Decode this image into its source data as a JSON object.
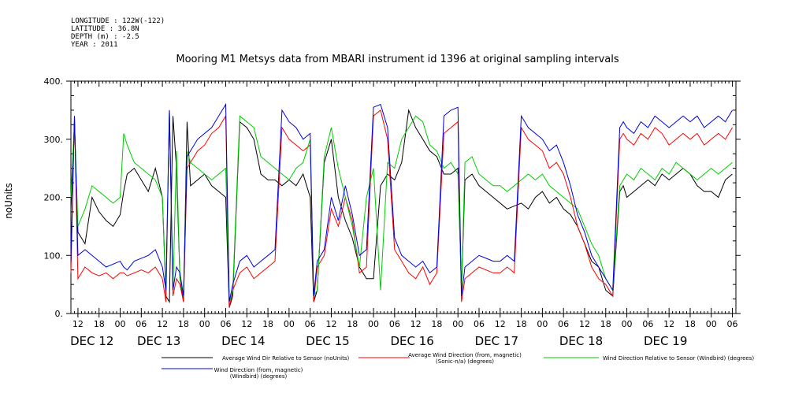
{
  "header": {
    "meta_lines": [
      "LONGITUDE : 122W(-122)",
      "LATITUDE : 36.8N",
      "DEPTH (m) : -2.5",
      "YEAR : 2011"
    ],
    "title": "Mooring M1 Metsys data from MBARI instrument id 1396 at original sampling intervals"
  },
  "chart_data": {
    "type": "line",
    "title": "Mooring M1 Metsys data from MBARI instrument id 1396 at original sampling intervals",
    "ylabel": "noUnits",
    "xlabel": "",
    "ylim": [
      0,
      400
    ],
    "yticks": [
      0,
      100,
      200,
      300,
      400
    ],
    "ytick_labels": [
      "0.",
      "100.",
      "200.",
      "300.",
      "400."
    ],
    "x_unit": "hours since 2011-12-12 00:00",
    "xlim": [
      -14,
      175
    ],
    "hour_ticks": [
      {
        "h": -12,
        "label": "12"
      },
      {
        "h": -6,
        "label": "18"
      },
      {
        "h": 0,
        "label": "00"
      },
      {
        "h": 6,
        "label": "06"
      },
      {
        "h": 12,
        "label": "12"
      },
      {
        "h": 18,
        "label": "18"
      },
      {
        "h": 24,
        "label": "00"
      },
      {
        "h": 30,
        "label": "06"
      },
      {
        "h": 36,
        "label": "12"
      },
      {
        "h": 42,
        "label": "18"
      },
      {
        "h": 48,
        "label": "00"
      },
      {
        "h": 54,
        "label": "06"
      },
      {
        "h": 60,
        "label": "12"
      },
      {
        "h": 66,
        "label": "18"
      },
      {
        "h": 72,
        "label": "00"
      },
      {
        "h": 78,
        "label": "06"
      },
      {
        "h": 84,
        "label": "12"
      },
      {
        "h": 90,
        "label": "18"
      },
      {
        "h": 96,
        "label": "00"
      },
      {
        "h": 102,
        "label": "06"
      },
      {
        "h": 108,
        "label": "12"
      },
      {
        "h": 114,
        "label": "18"
      },
      {
        "h": 120,
        "label": "00"
      },
      {
        "h": 126,
        "label": "06"
      },
      {
        "h": 132,
        "label": "12"
      },
      {
        "h": 138,
        "label": "18"
      },
      {
        "h": 144,
        "label": "00"
      },
      {
        "h": 150,
        "label": "06"
      },
      {
        "h": 156,
        "label": "12"
      },
      {
        "h": 162,
        "label": "18"
      },
      {
        "h": 168,
        "label": "00"
      },
      {
        "h": 174,
        "label": "06"
      }
    ],
    "day_labels": [
      {
        "h": -8,
        "label": "DEC 12"
      },
      {
        "h": 11,
        "label": "DEC 13"
      },
      {
        "h": 35,
        "label": "DEC 14"
      },
      {
        "h": 59,
        "label": "DEC 15"
      },
      {
        "h": 83,
        "label": "DEC 16"
      },
      {
        "h": 107,
        "label": "DEC 17"
      },
      {
        "h": 131,
        "label": "DEC 18"
      },
      {
        "h": 155,
        "label": "DEC 19"
      }
    ],
    "series": [
      {
        "name": "Average Wind Dir Relative to Sensor (noUnits)",
        "color": "#000000",
        "x": [
          -14,
          -13,
          -12,
          -10,
          -8,
          -6,
          -4,
          -2,
          0,
          1,
          2,
          4,
          6,
          8,
          10,
          12,
          13,
          14,
          15,
          16,
          17,
          18,
          19,
          20,
          22,
          24,
          26,
          28,
          30,
          31,
          32,
          34,
          36,
          38,
          40,
          42,
          44,
          46,
          48,
          50,
          52,
          54,
          55,
          56,
          58,
          60,
          62,
          64,
          66,
          68,
          70,
          72,
          74,
          76,
          78,
          80,
          82,
          84,
          86,
          88,
          90,
          92,
          94,
          96,
          97,
          98,
          100,
          102,
          104,
          106,
          108,
          110,
          112,
          114,
          116,
          118,
          120,
          122,
          124,
          126,
          128,
          130,
          132,
          134,
          136,
          138,
          140,
          142,
          143,
          144,
          146,
          148,
          150,
          152,
          154,
          156,
          158,
          160,
          162,
          164,
          166,
          168,
          170,
          172,
          174
        ],
        "y": [
          180,
          330,
          140,
          120,
          200,
          175,
          160,
          150,
          170,
          210,
          240,
          250,
          230,
          210,
          250,
          200,
          30,
          20,
          340,
          250,
          60,
          20,
          330,
          220,
          230,
          240,
          220,
          210,
          200,
          10,
          30,
          330,
          320,
          300,
          240,
          230,
          230,
          220,
          230,
          220,
          240,
          200,
          20,
          40,
          260,
          300,
          200,
          160,
          130,
          80,
          60,
          60,
          220,
          240,
          230,
          260,
          350,
          320,
          300,
          280,
          270,
          240,
          240,
          250,
          40,
          230,
          240,
          220,
          210,
          200,
          190,
          180,
          185,
          190,
          180,
          200,
          210,
          190,
          200,
          180,
          170,
          150,
          120,
          90,
          80,
          40,
          30,
          210,
          220,
          200,
          210,
          220,
          230,
          220,
          240,
          230,
          240,
          250,
          240,
          220,
          210,
          210,
          200,
          230,
          240
        ]
      },
      {
        "name": "Average Wind Direction (from, magnetic) (Sonic-n/a) (degrees)",
        "color": "#ff0000",
        "x": [
          -14,
          -13,
          -12,
          -10,
          -8,
          -6,
          -4,
          -2,
          0,
          1,
          2,
          4,
          6,
          8,
          10,
          12,
          13,
          14,
          15,
          16,
          17,
          18,
          19,
          20,
          22,
          24,
          26,
          28,
          30,
          31,
          32,
          34,
          36,
          38,
          40,
          42,
          44,
          46,
          48,
          50,
          52,
          54,
          55,
          56,
          58,
          60,
          62,
          64,
          66,
          68,
          70,
          72,
          74,
          76,
          78,
          80,
          82,
          84,
          86,
          88,
          90,
          92,
          94,
          96,
          97,
          98,
          100,
          102,
          104,
          106,
          108,
          110,
          112,
          114,
          116,
          118,
          120,
          122,
          124,
          126,
          128,
          130,
          132,
          134,
          136,
          138,
          140,
          142,
          143,
          144,
          146,
          148,
          150,
          152,
          154,
          156,
          158,
          160,
          162,
          164,
          166,
          168,
          170,
          172,
          174
        ],
        "y": [
          70,
          340,
          60,
          80,
          70,
          65,
          70,
          60,
          70,
          70,
          65,
          70,
          75,
          70,
          80,
          60,
          20,
          350,
          30,
          60,
          50,
          20,
          250,
          260,
          280,
          290,
          310,
          320,
          340,
          10,
          40,
          70,
          80,
          60,
          70,
          80,
          90,
          320,
          300,
          290,
          280,
          290,
          20,
          80,
          100,
          180,
          150,
          200,
          160,
          70,
          80,
          340,
          350,
          300,
          110,
          90,
          70,
          60,
          80,
          50,
          70,
          310,
          320,
          330,
          20,
          60,
          70,
          80,
          75,
          70,
          70,
          80,
          70,
          320,
          300,
          290,
          280,
          250,
          260,
          240,
          200,
          150,
          120,
          80,
          60,
          50,
          30,
          300,
          310,
          300,
          290,
          310,
          300,
          320,
          310,
          290,
          300,
          310,
          300,
          310,
          290,
          300,
          310,
          300,
          320
        ]
      },
      {
        "name": "Wind Direction Relative to Sensor (Windbird) (degrees)",
        "color": "#00cc00",
        "x": [
          -14,
          -13,
          -12,
          -10,
          -8,
          -6,
          -4,
          -2,
          0,
          1,
          2,
          4,
          6,
          8,
          10,
          12,
          13,
          14,
          15,
          16,
          17,
          18,
          19,
          20,
          22,
          24,
          26,
          28,
          30,
          31,
          32,
          34,
          36,
          38,
          40,
          42,
          44,
          46,
          48,
          50,
          52,
          54,
          55,
          56,
          58,
          60,
          62,
          64,
          66,
          68,
          70,
          72,
          74,
          76,
          78,
          80,
          82,
          84,
          86,
          88,
          90,
          92,
          94,
          96,
          97,
          98,
          100,
          102,
          104,
          106,
          108,
          110,
          112,
          114,
          116,
          118,
          120,
          122,
          124,
          126,
          128,
          130,
          132,
          134,
          136,
          138,
          140,
          142,
          143,
          144,
          146,
          148,
          150,
          152,
          154,
          156,
          158,
          160,
          162,
          164,
          166,
          168,
          170,
          172,
          174
        ],
        "y": [
          200,
          330,
          150,
          180,
          220,
          210,
          200,
          190,
          200,
          310,
          290,
          260,
          250,
          240,
          230,
          200,
          40,
          350,
          40,
          280,
          60,
          30,
          280,
          260,
          250,
          240,
          230,
          240,
          250,
          20,
          40,
          340,
          330,
          320,
          270,
          260,
          250,
          240,
          230,
          250,
          260,
          300,
          30,
          40,
          270,
          320,
          250,
          200,
          150,
          80,
          200,
          250,
          40,
          260,
          250,
          300,
          320,
          340,
          330,
          290,
          280,
          250,
          260,
          240,
          40,
          260,
          270,
          240,
          230,
          220,
          220,
          210,
          220,
          230,
          240,
          230,
          240,
          220,
          210,
          200,
          190,
          180,
          150,
          120,
          100,
          60,
          40,
          220,
          230,
          240,
          230,
          250,
          240,
          230,
          250,
          240,
          260,
          250,
          240,
          230,
          240,
          250,
          240,
          250,
          260
        ]
      },
      {
        "name": "Wind Direction (from, magnetic) (Windbird) (degrees)",
        "color": "#0000dd",
        "x": [
          -14,
          -13,
          -12,
          -10,
          -8,
          -6,
          -4,
          -2,
          0,
          1,
          2,
          4,
          6,
          8,
          10,
          12,
          13,
          14,
          15,
          16,
          17,
          18,
          19,
          20,
          22,
          24,
          26,
          28,
          30,
          31,
          32,
          34,
          36,
          38,
          40,
          42,
          44,
          46,
          48,
          50,
          52,
          54,
          55,
          56,
          58,
          60,
          62,
          64,
          66,
          68,
          70,
          72,
          74,
          76,
          78,
          80,
          82,
          84,
          86,
          88,
          90,
          92,
          94,
          96,
          97,
          98,
          100,
          102,
          104,
          106,
          108,
          110,
          112,
          114,
          116,
          118,
          120,
          122,
          124,
          126,
          128,
          130,
          132,
          134,
          136,
          138,
          140,
          142,
          143,
          144,
          146,
          148,
          150,
          152,
          154,
          156,
          158,
          160,
          162,
          164,
          166,
          168,
          170,
          172,
          174
        ],
        "y": [
          90,
          340,
          100,
          110,
          100,
          90,
          80,
          85,
          90,
          80,
          75,
          90,
          95,
          100,
          110,
          80,
          40,
          350,
          40,
          80,
          70,
          30,
          270,
          280,
          300,
          310,
          320,
          340,
          360,
          20,
          50,
          90,
          100,
          80,
          90,
          100,
          110,
          350,
          330,
          320,
          300,
          310,
          30,
          90,
          110,
          200,
          160,
          220,
          170,
          100,
          110,
          355,
          360,
          320,
          130,
          100,
          90,
          80,
          90,
          70,
          80,
          340,
          350,
          355,
          30,
          80,
          90,
          100,
          95,
          90,
          90,
          100,
          90,
          340,
          320,
          310,
          300,
          280,
          290,
          260,
          220,
          170,
          140,
          100,
          80,
          60,
          40,
          320,
          330,
          320,
          310,
          330,
          320,
          340,
          330,
          320,
          330,
          340,
          330,
          340,
          320,
          330,
          340,
          330,
          350
        ]
      }
    ]
  }
}
